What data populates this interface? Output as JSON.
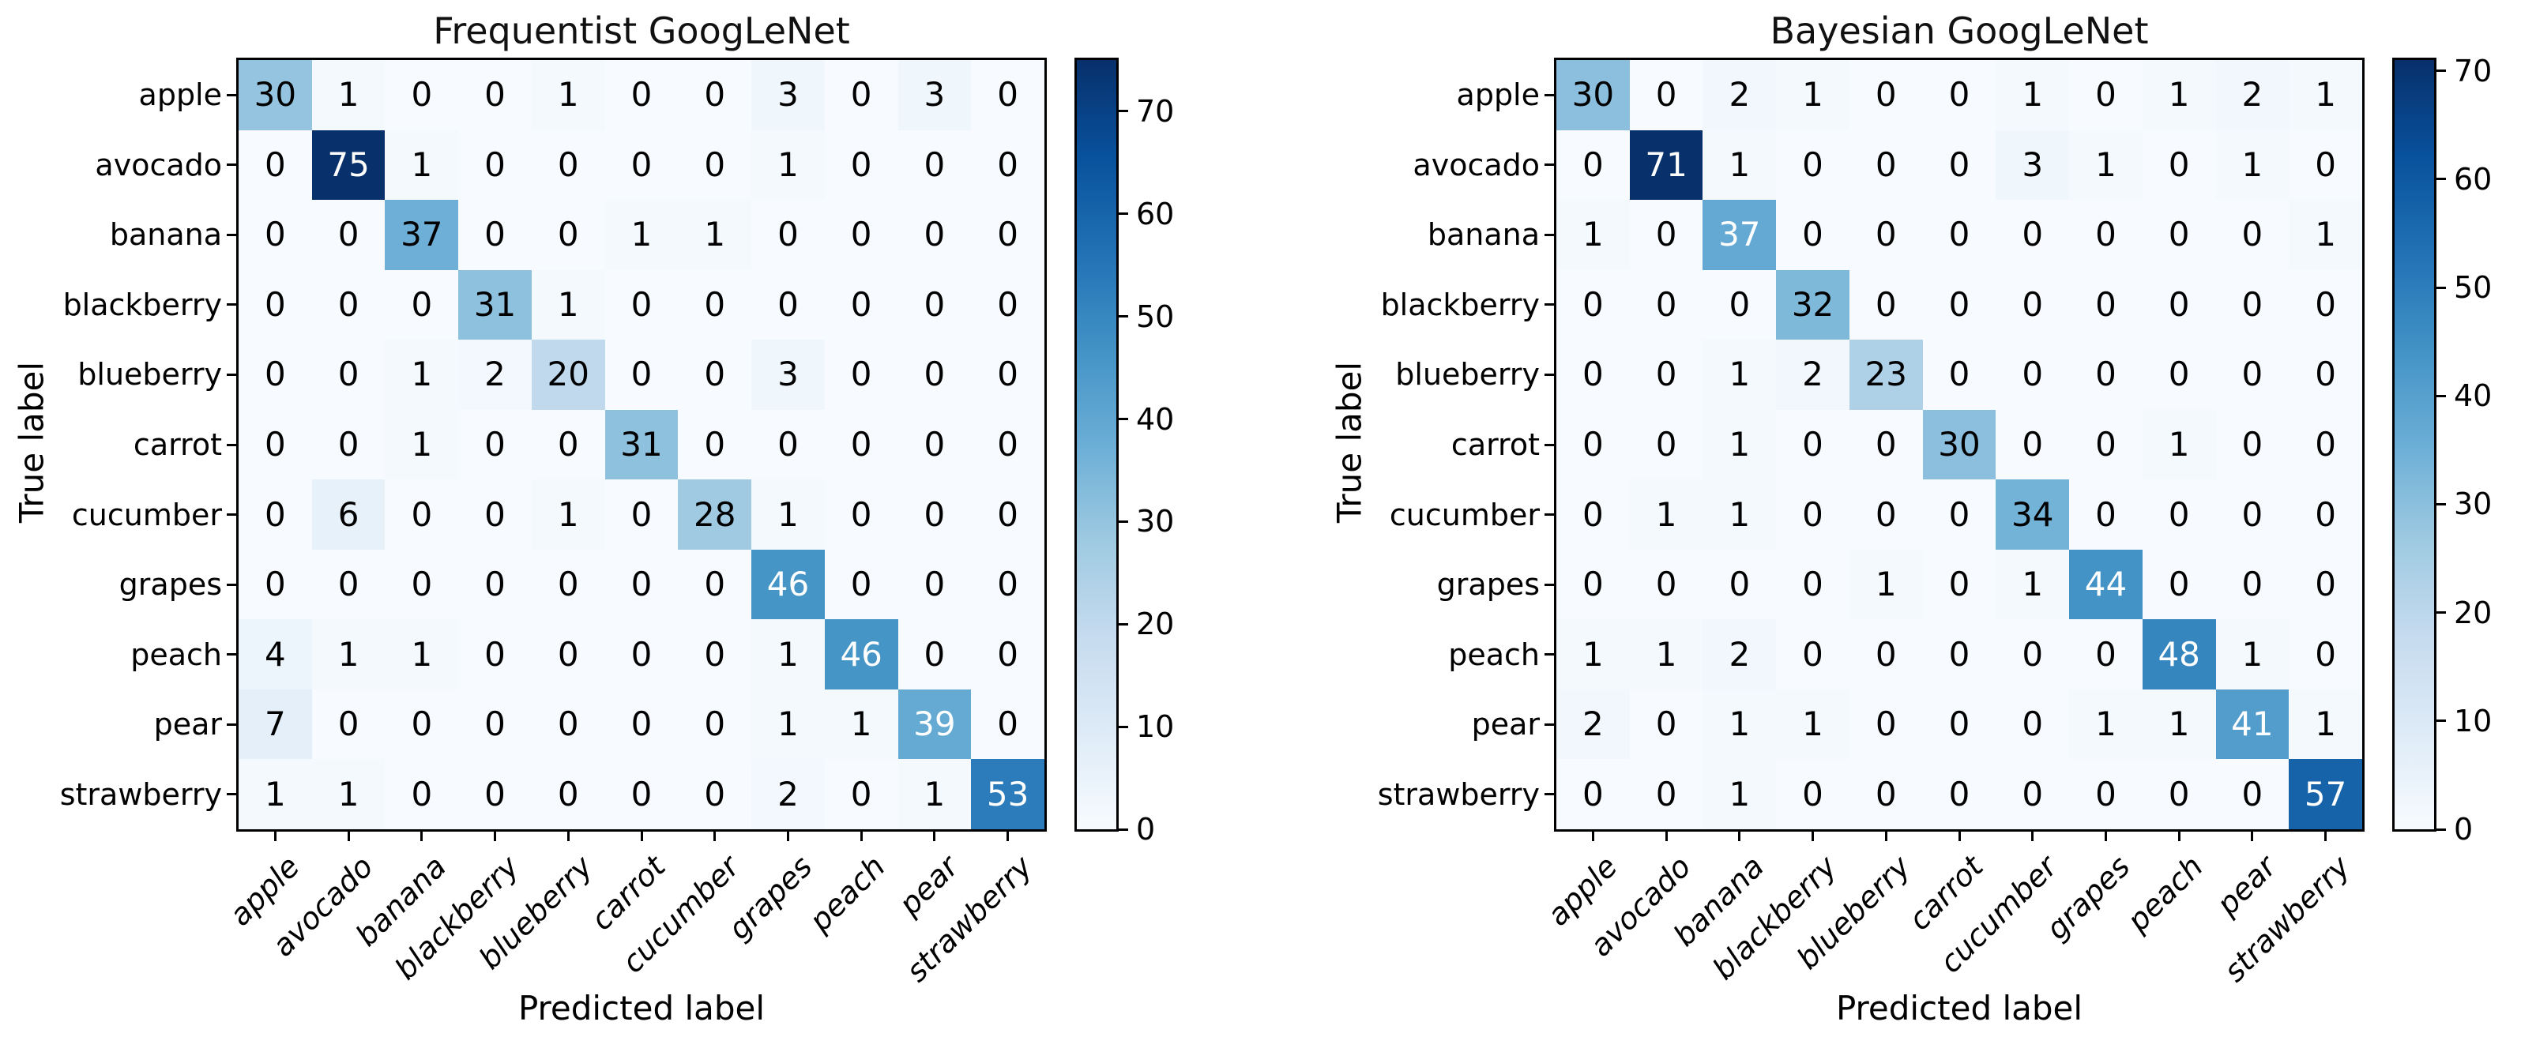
{
  "figure": {
    "background": "#ffffff",
    "font_color": "#000000",
    "cell_text_light": "#ffffff",
    "cell_text_dark": "#000000"
  },
  "colormap": {
    "name": "Blues",
    "stops": [
      0,
      0.125,
      0.25,
      0.375,
      0.5,
      0.625,
      0.75,
      0.875,
      1
    ],
    "colors": [
      "#f7fbff",
      "#deebf7",
      "#c6dbef",
      "#9ecae1",
      "#6baed6",
      "#4292c6",
      "#2171b5",
      "#08519c",
      "#08306b"
    ]
  },
  "chart_data": [
    {
      "type": "heatmap",
      "title": "Frequentist GoogLeNet",
      "xlabel": "Predicted label",
      "ylabel": "True label",
      "categories": [
        "apple",
        "avocado",
        "banana",
        "blackberry",
        "blueberry",
        "carrot",
        "cucumber",
        "grapes",
        "peach",
        "pear",
        "strawberry"
      ],
      "matrix": [
        [
          30,
          1,
          0,
          0,
          1,
          0,
          0,
          3,
          0,
          3,
          0
        ],
        [
          0,
          75,
          1,
          0,
          0,
          0,
          0,
          1,
          0,
          0,
          0
        ],
        [
          0,
          0,
          37,
          0,
          0,
          1,
          1,
          0,
          0,
          0,
          0
        ],
        [
          0,
          0,
          0,
          31,
          1,
          0,
          0,
          0,
          0,
          0,
          0
        ],
        [
          0,
          0,
          1,
          2,
          20,
          0,
          0,
          3,
          0,
          0,
          0
        ],
        [
          0,
          0,
          1,
          0,
          0,
          31,
          0,
          0,
          0,
          0,
          0
        ],
        [
          0,
          6,
          0,
          0,
          1,
          0,
          28,
          1,
          0,
          0,
          0
        ],
        [
          0,
          0,
          0,
          0,
          0,
          0,
          0,
          46,
          0,
          0,
          0
        ],
        [
          4,
          1,
          1,
          0,
          0,
          0,
          0,
          1,
          46,
          0,
          0
        ],
        [
          7,
          0,
          0,
          0,
          0,
          0,
          0,
          1,
          1,
          39,
          0
        ],
        [
          1,
          1,
          0,
          0,
          0,
          0,
          0,
          2,
          0,
          1,
          53
        ]
      ],
      "vmin": 0,
      "vmax": 75,
      "colorbar_ticks": [
        0,
        10,
        20,
        30,
        40,
        50,
        60,
        70
      ],
      "legend_position": "right-colorbar",
      "grid": false
    },
    {
      "type": "heatmap",
      "title": "Bayesian GoogLeNet",
      "xlabel": "Predicted label",
      "ylabel": "True label",
      "categories": [
        "apple",
        "avocado",
        "banana",
        "blackberry",
        "blueberry",
        "carrot",
        "cucumber",
        "grapes",
        "peach",
        "pear",
        "strawberry"
      ],
      "matrix": [
        [
          30,
          0,
          2,
          1,
          0,
          0,
          1,
          0,
          1,
          2,
          1
        ],
        [
          0,
          71,
          1,
          0,
          0,
          0,
          3,
          1,
          0,
          1,
          0
        ],
        [
          1,
          0,
          37,
          0,
          0,
          0,
          0,
          0,
          0,
          0,
          1
        ],
        [
          0,
          0,
          0,
          32,
          0,
          0,
          0,
          0,
          0,
          0,
          0
        ],
        [
          0,
          0,
          1,
          2,
          23,
          0,
          0,
          0,
          0,
          0,
          0
        ],
        [
          0,
          0,
          1,
          0,
          0,
          30,
          0,
          0,
          1,
          0,
          0
        ],
        [
          0,
          1,
          1,
          0,
          0,
          0,
          34,
          0,
          0,
          0,
          0
        ],
        [
          0,
          0,
          0,
          0,
          1,
          0,
          1,
          44,
          0,
          0,
          0
        ],
        [
          1,
          1,
          2,
          0,
          0,
          0,
          0,
          0,
          48,
          1,
          0
        ],
        [
          2,
          0,
          1,
          1,
          0,
          0,
          0,
          1,
          1,
          41,
          1
        ],
        [
          0,
          0,
          1,
          0,
          0,
          0,
          0,
          0,
          0,
          0,
          57
        ]
      ],
      "vmin": 0,
      "vmax": 71,
      "colorbar_ticks": [
        0,
        10,
        20,
        30,
        40,
        50,
        60,
        70
      ],
      "legend_position": "right-colorbar",
      "grid": false
    }
  ]
}
